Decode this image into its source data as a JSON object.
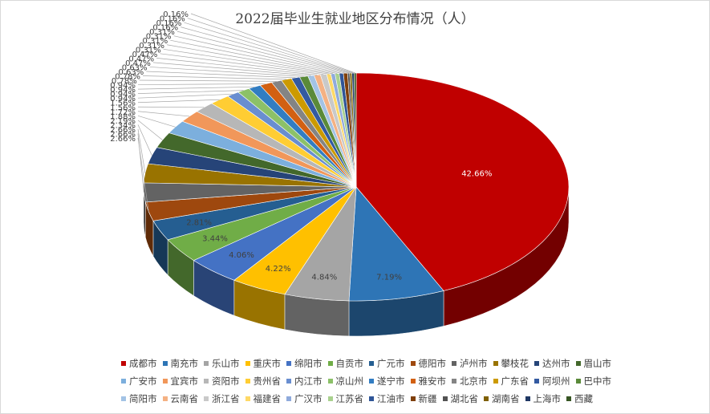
{
  "chart_data": {
    "type": "pie",
    "title": "2022届毕业生就业地区分布情况（人）",
    "categories": [
      "成都市",
      "南充市",
      "乐山市",
      "重庆市",
      "绵阳市",
      "自贡市",
      "广元市",
      "德阳市",
      "泸州市",
      "攀枝花",
      "达州市",
      "眉山市",
      "广安市",
      "宜宾市",
      "资阳市",
      "贵州省",
      "内江市",
      "凉山州",
      "遂宁市",
      "雅安市",
      "北京市",
      "广东省",
      "阿坝州",
      "巴中市",
      "简阳市",
      "云南省",
      "浙江省",
      "福建省",
      "广汉市",
      "江苏省",
      "江油市",
      "新疆",
      "湖北省",
      "湖南省",
      "上海市",
      "西藏"
    ],
    "values": [
      42.66,
      7.19,
      4.84,
      4.22,
      4.06,
      3.44,
      2.81,
      2.66,
      2.66,
      2.66,
      2.34,
      2.19,
      1.88,
      1.72,
      1.56,
      1.56,
      0.94,
      0.94,
      0.94,
      0.94,
      0.78,
      0.78,
      0.63,
      0.63,
      0.47,
      0.47,
      0.47,
      0.31,
      0.31,
      0.31,
      0.31,
      0.31,
      0.16,
      0.16,
      0.16,
      0.16
    ],
    "labels": [
      "42.66%",
      "7.19%",
      "4.84%",
      "4.22%",
      "4.06%",
      "3.44%",
      "2.81%",
      "2.66%",
      "2.66%",
      "2.66%",
      "2.34%",
      "2.19%",
      "1.88%",
      "1.72%",
      "1.56%",
      "1.56%",
      "0.94%",
      "0.94%",
      "0.94%",
      "0.94%",
      "0.78%",
      "0.78%",
      "0.63%",
      "0.63%",
      "0.47%",
      "0.47%",
      "0.47%",
      "0.31%",
      "0.31%",
      "0.31%",
      "0.31%",
      "0.31%",
      "0.16%",
      "0.16%",
      "0.16%",
      "0.16%"
    ],
    "colors": [
      "#c00000",
      "#2e75b6",
      "#a5a5a5",
      "#ffc000",
      "#4472c4",
      "#70ad47",
      "#255e91",
      "#9e480e",
      "#636363",
      "#997300",
      "#264478",
      "#43682b",
      "#7cafdd",
      "#f1975a",
      "#b7b7b7",
      "#ffcd33",
      "#698ed0",
      "#8cc168",
      "#327dc2",
      "#d26012",
      "#848484",
      "#cc9a00",
      "#335aa1",
      "#5a8a39",
      "#a3c3e5",
      "#f4b183",
      "#c9c9c9",
      "#ffd966",
      "#8faadc",
      "#a9d18e",
      "#2f5597",
      "#7f3f0a",
      "#525252",
      "#7f6000",
      "#1f3864",
      "#375623"
    ],
    "legend_position": "bottom"
  }
}
